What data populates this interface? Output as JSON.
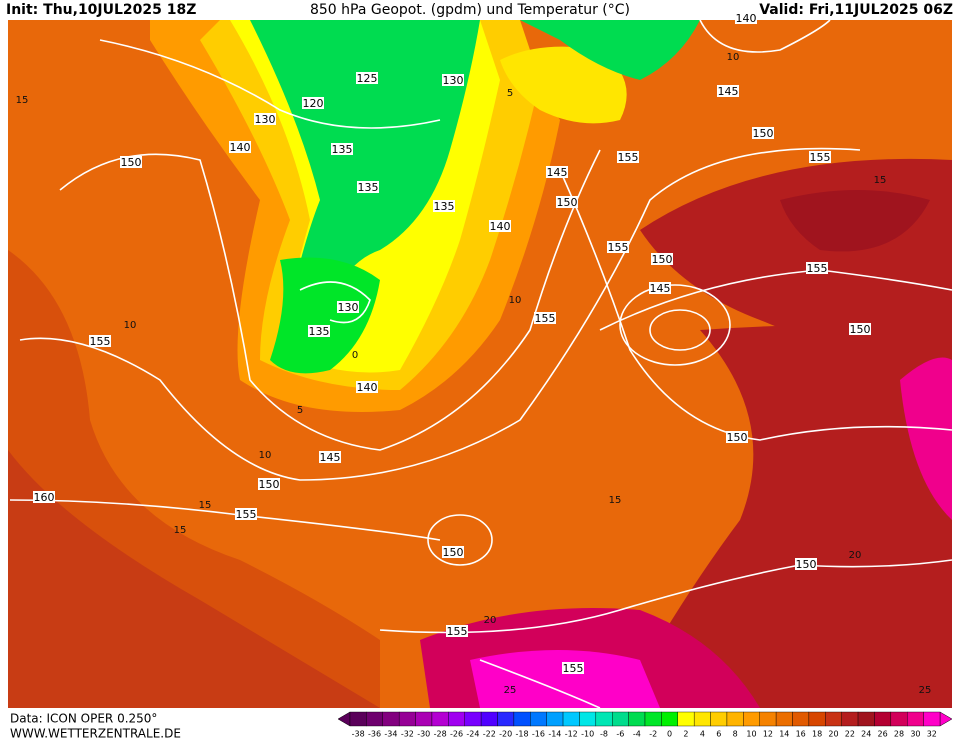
{
  "header": {
    "init": "Init: Thu,10JUL2025 18Z",
    "title": "850 hPa Geopot. (gpdm) und Temperatur (°C)",
    "valid": "Valid: Fri,11JUL2025 06Z"
  },
  "footer": {
    "data": "Data: ICON OPER 0.250°",
    "site": "WWW.WETTERZENTRALE.DE"
  },
  "geopotential_labels": [
    "125",
    "130",
    "120",
    "130",
    "140",
    "135",
    "150",
    "135",
    "135",
    "145",
    "150",
    "140",
    "155",
    "155",
    "145",
    "140",
    "150",
    "155",
    "155",
    "150",
    "145",
    "130",
    "135",
    "155",
    "155",
    "150",
    "140",
    "145",
    "150",
    "155",
    "160",
    "150",
    "150",
    "150",
    "155",
    "155"
  ],
  "isotherm_labels": [
    "15",
    "10",
    "5",
    "0",
    "10",
    "15",
    "15",
    "20",
    "25",
    "20",
    "25",
    "15",
    "10",
    "5",
    "10",
    "15"
  ],
  "colorbar": {
    "ticks": [
      -38,
      -36,
      -34,
      -32,
      -30,
      -28,
      -26,
      -24,
      -22,
      -20,
      -18,
      -16,
      -14,
      -12,
      -10,
      -8,
      -6,
      -4,
      -2,
      0,
      2,
      4,
      6,
      8,
      10,
      12,
      14,
      16,
      18,
      20,
      22,
      24,
      26,
      28,
      30,
      32
    ],
    "colors": [
      "#5a005a",
      "#6e006e",
      "#82007f",
      "#960096",
      "#aa00b4",
      "#b400d2",
      "#a000f0",
      "#7800ff",
      "#5000ff",
      "#2828ff",
      "#0050ff",
      "#0078ff",
      "#00a0ff",
      "#00c8ff",
      "#00e6e6",
      "#00e6b4",
      "#00dc8c",
      "#00dc50",
      "#00e628",
      "#00f000",
      "#ffff00",
      "#ffe600",
      "#ffcd00",
      "#ffb400",
      "#ff9b00",
      "#f58200",
      "#eb6e00",
      "#e15a00",
      "#d74600",
      "#c83214",
      "#b41e1e",
      "#a0141e",
      "#b40032",
      "#d2005a",
      "#f0008c",
      "#ff00c8"
    ]
  }
}
